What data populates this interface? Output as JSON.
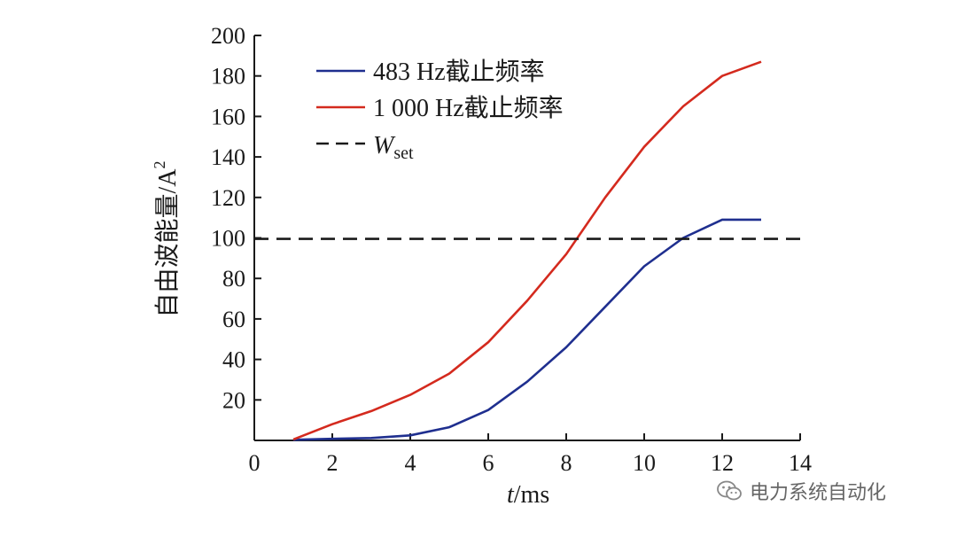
{
  "chart_data": {
    "type": "line",
    "xlabel_italic": "t",
    "xlabel_rest": "/ms",
    "ylabel_main": "自由波能量/A",
    "ylabel_sup": "2",
    "xlim": [
      0,
      14
    ],
    "ylim": [
      0,
      200
    ],
    "xticks": [
      0,
      2,
      4,
      6,
      8,
      10,
      12,
      14
    ],
    "yticks": [
      20,
      40,
      60,
      80,
      100,
      120,
      140,
      160,
      180,
      200
    ],
    "legend_position": "top-left",
    "series": [
      {
        "name": "483 Hz截止频率",
        "color": "#1f2f8f",
        "style": "solid",
        "x": [
          1,
          2,
          3,
          4,
          5,
          6,
          7,
          8,
          9,
          10,
          11,
          12,
          13
        ],
        "y": [
          0.3,
          0.8,
          1.2,
          2.5,
          6.5,
          15,
          29,
          46,
          66,
          86,
          100,
          109,
          109
        ]
      },
      {
        "name": "1 000 Hz截止频率",
        "color": "#d42a1e",
        "style": "solid",
        "x": [
          1,
          2,
          3,
          4,
          5,
          6,
          7,
          8,
          9,
          10,
          11,
          12,
          13
        ],
        "y": [
          0.5,
          8,
          14.5,
          22.5,
          33,
          48.5,
          69,
          92,
          120,
          145,
          165,
          180,
          187
        ]
      },
      {
        "name_main": "W",
        "name_sub": "set",
        "color": "#1a1a1a",
        "style": "dashed",
        "x": [
          0,
          14
        ],
        "y": [
          99.5,
          99.5
        ]
      }
    ]
  },
  "watermark": {
    "text": "电力系统自动化",
    "icon": "wechat-icon"
  }
}
